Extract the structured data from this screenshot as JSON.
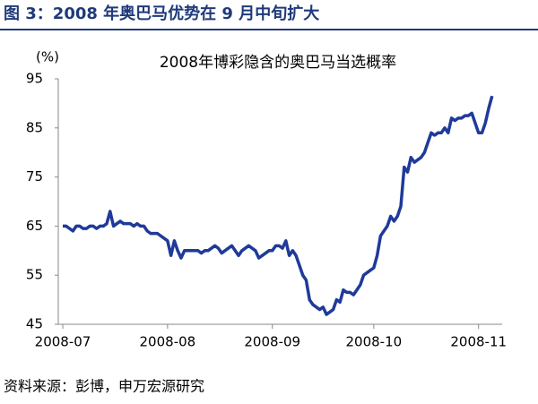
{
  "header": {
    "title": "图 3：2008 年奥巴马优势在 9 月中旬扩大"
  },
  "chart_data": {
    "type": "line",
    "title": "2008年博彩隐含的奥巴马当选概率",
    "y_label": "(%)",
    "categories": [
      "2008-07",
      null,
      null,
      null,
      null,
      null,
      null,
      null,
      null,
      null,
      null,
      null,
      null,
      null,
      null,
      null,
      null,
      null,
      null,
      null,
      null,
      null,
      null,
      null,
      null,
      null,
      null,
      null,
      null,
      null,
      null,
      "2008-08",
      null,
      null,
      null,
      null,
      null,
      null,
      null,
      null,
      null,
      null,
      null,
      null,
      null,
      null,
      null,
      null,
      null,
      null,
      null,
      null,
      null,
      null,
      null,
      null,
      null,
      null,
      null,
      null,
      null,
      null,
      "2008-09",
      null,
      null,
      null,
      null,
      null,
      null,
      null,
      null,
      null,
      null,
      null,
      null,
      null,
      null,
      null,
      null,
      null,
      null,
      null,
      null,
      null,
      null,
      null,
      null,
      null,
      null,
      null,
      null,
      null,
      "2008-10",
      null,
      null,
      null,
      null,
      null,
      null,
      null,
      null,
      null,
      null,
      null,
      null,
      null,
      null,
      null,
      null,
      null,
      null,
      null,
      null,
      null,
      null,
      null,
      null,
      null,
      null,
      null,
      null,
      null,
      null,
      "2008-11",
      null,
      null,
      null,
      null
    ],
    "series": [
      {
        "color": "#1f3a9a",
        "values": [
          65,
          65,
          64.5,
          64,
          65,
          65,
          64.5,
          64.5,
          65,
          65,
          64.5,
          65,
          65,
          65.5,
          68,
          65,
          65.5,
          66,
          65.5,
          65.5,
          65.5,
          65,
          65.5,
          65,
          65,
          64,
          63.5,
          63.5,
          63.5,
          63,
          62.5,
          62,
          59,
          62,
          60,
          58.5,
          60,
          60,
          60,
          60,
          60,
          59.5,
          60,
          60,
          60.5,
          61,
          60.5,
          59.5,
          60,
          60.5,
          61,
          60,
          59,
          60,
          60.5,
          61,
          60.5,
          60,
          58.5,
          59,
          59.5,
          60,
          60,
          61,
          61,
          60.5,
          62,
          59,
          60,
          59,
          57,
          55,
          54,
          50,
          49,
          48.5,
          48,
          48.5,
          47,
          47.5,
          48,
          50,
          49.5,
          52,
          51.5,
          51.5,
          51,
          52,
          53,
          55,
          55.5,
          56,
          56.5,
          59,
          63,
          64,
          65,
          67,
          66,
          67,
          69,
          77,
          76,
          79,
          78,
          78.5,
          79,
          80,
          82,
          84,
          83.5,
          84,
          84,
          85,
          84,
          87,
          86.5,
          87,
          87,
          87.5,
          87.5,
          88,
          86,
          84,
          84,
          86,
          89,
          91.5
        ]
      }
    ],
    "ylim": [
      45,
      95
    ],
    "yticks": [
      45,
      55,
      65,
      75,
      85,
      95
    ],
    "grid": false
  },
  "footer": {
    "source": "资料来源：彭博，申万宏源研究"
  }
}
